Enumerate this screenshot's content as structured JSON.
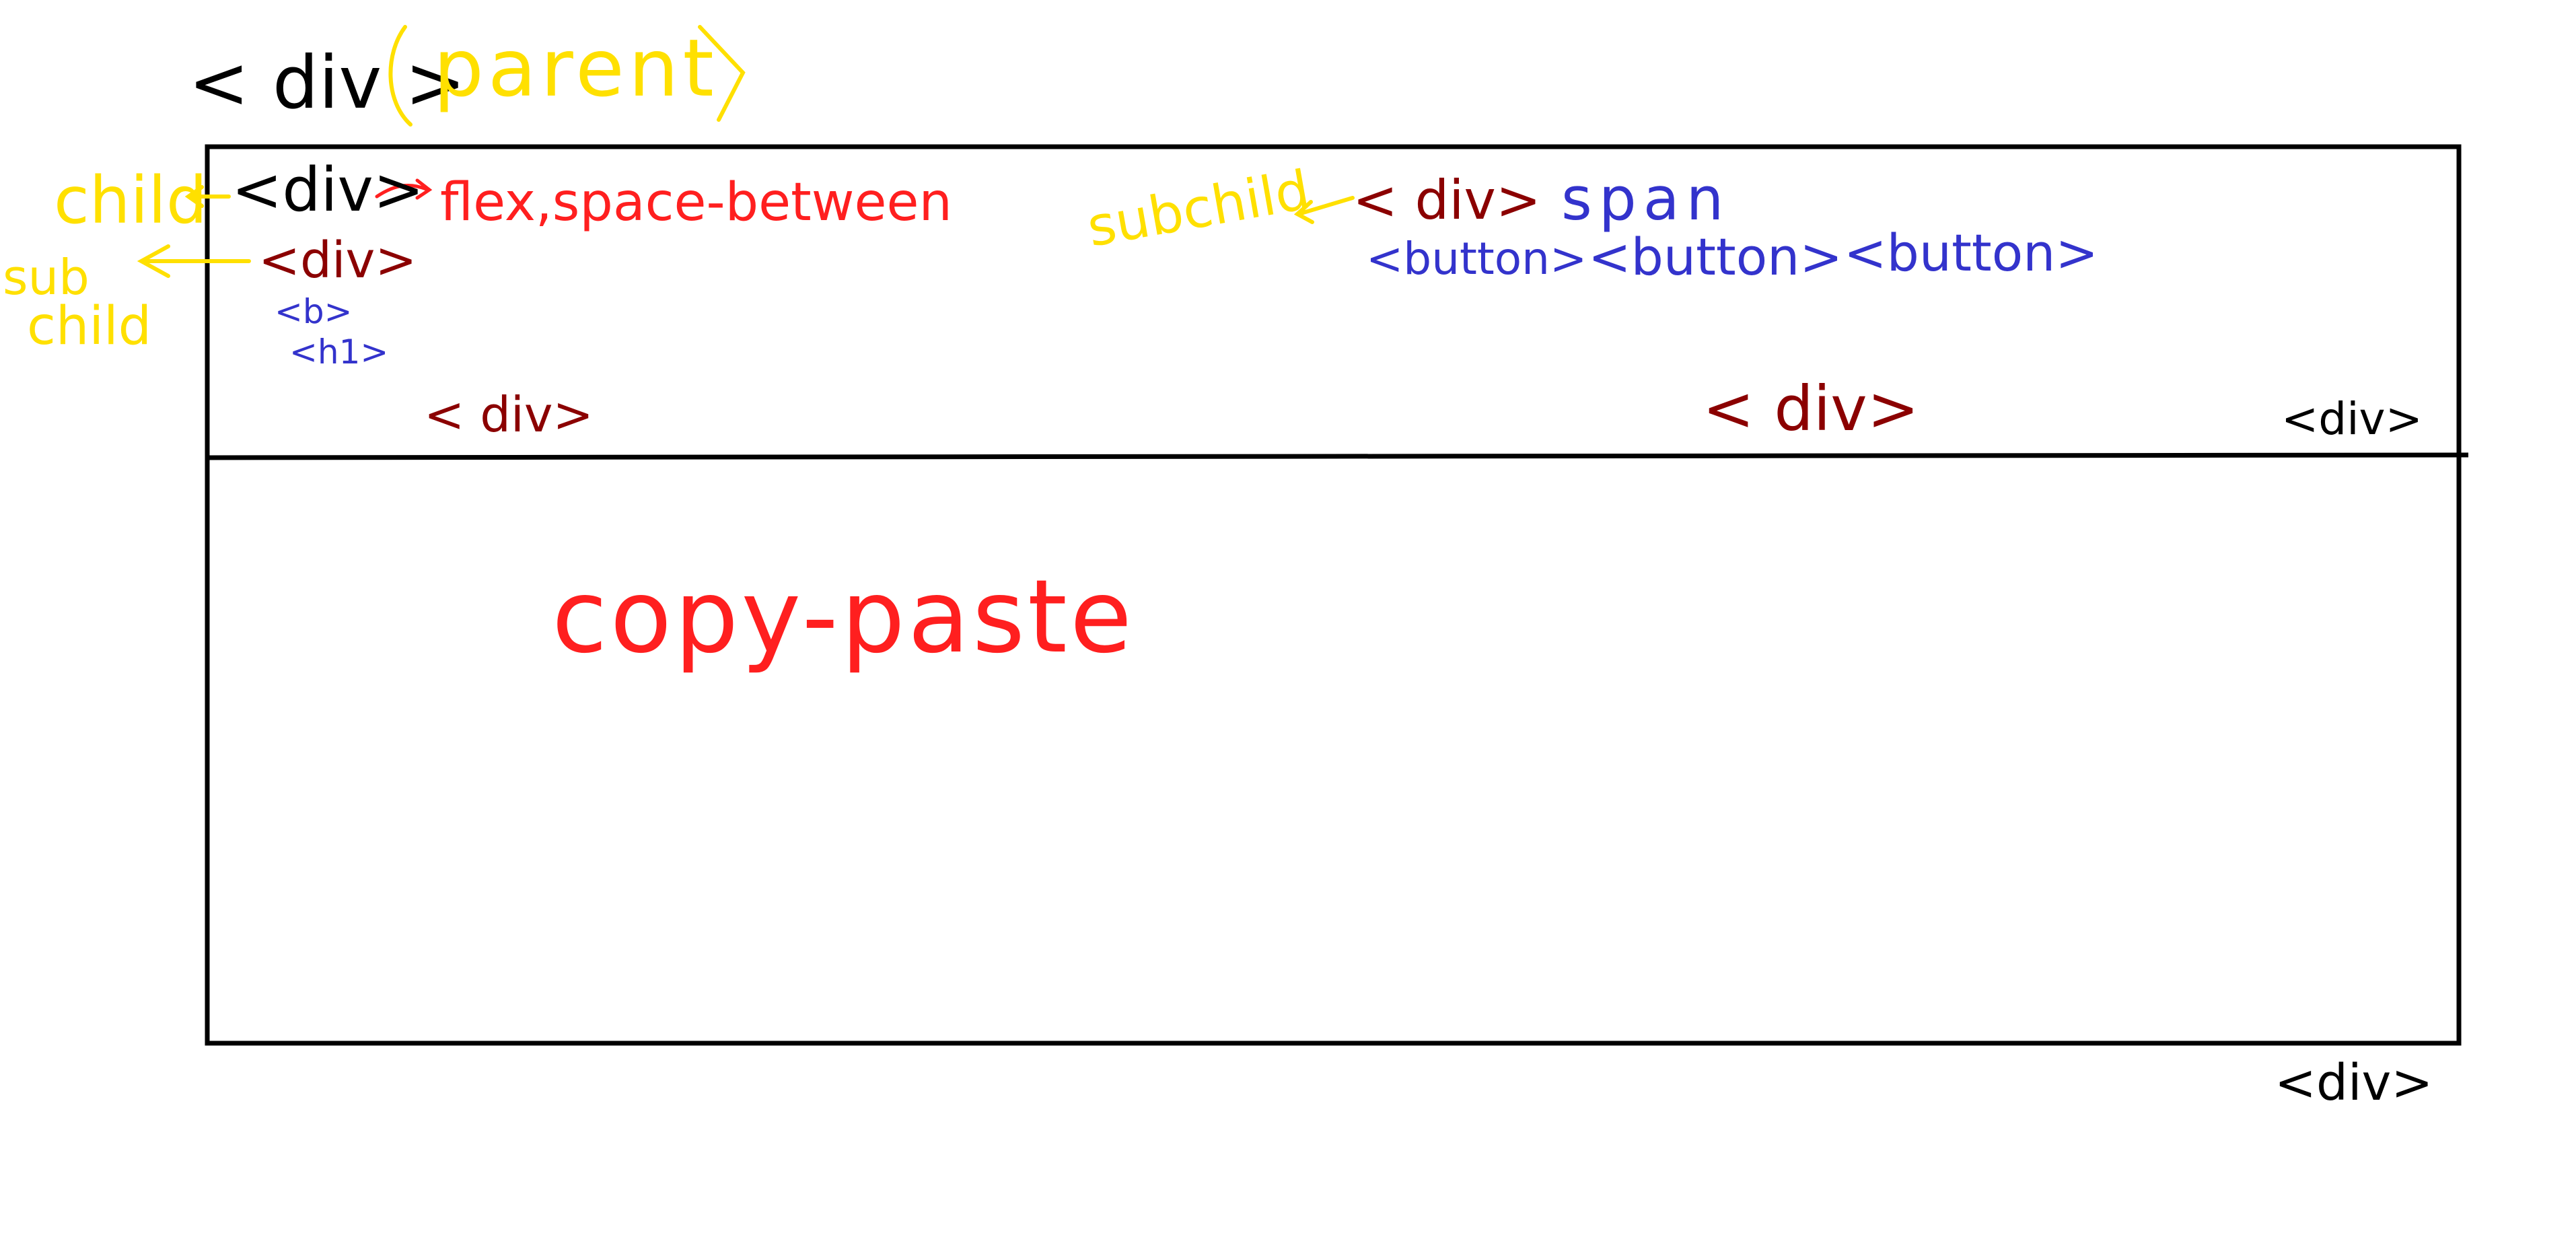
{
  "colors": {
    "black": "#000000",
    "yellow": "#ffe000",
    "red": "#ff1f1f",
    "dark_red": "#8b0000",
    "blue": "#3333cc"
  },
  "parent": {
    "tag": "< div >",
    "label": "parent"
  },
  "child": {
    "label": "child",
    "tag": "<div>",
    "note": "flex,space-between"
  },
  "sub_child_left": {
    "label_line1": "sub",
    "label_line2": "child",
    "tag": "<div>",
    "b_tag": "<b>",
    "h1_tag": "<h1>",
    "close_tag": "< div>"
  },
  "sub_child_right": {
    "label": "subchild",
    "tag": "< div>",
    "span": "span",
    "buttons": [
      "<button>",
      "<button>",
      "<button>"
    ],
    "close_tag": "< div>"
  },
  "child_close_tag": "<div>",
  "body_text": "copy-paste",
  "parent_close_tag": "<div>"
}
